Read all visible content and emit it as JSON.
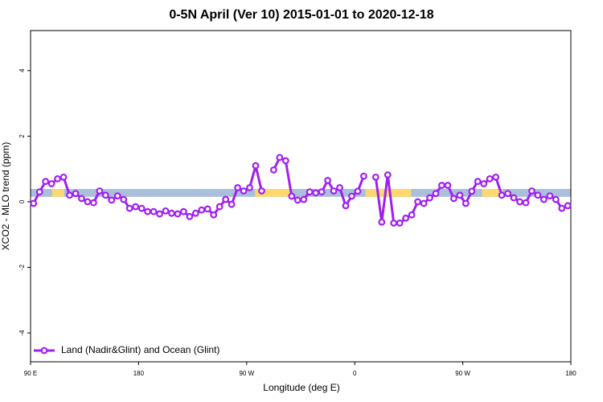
{
  "chart_data": {
    "type": "line",
    "title": "0-5N April (Ver 10)   2015-01-01 to 2020-12-18",
    "x_label": "Longitude (deg E)",
    "y_label": "XCO2 - MLO trend (ppm)",
    "xlim": [
      90,
      540
    ],
    "ylim": [
      -4.88,
      5.22
    ],
    "xticks": [
      {
        "value": 90,
        "label": "90 E"
      },
      {
        "value": 180,
        "label": "180"
      },
      {
        "value": 270,
        "label": "90 W"
      },
      {
        "value": 360,
        "label": "0"
      },
      {
        "value": 450,
        "label": "90 W"
      },
      {
        "value": 540,
        "label": "180"
      }
    ],
    "yticks": [
      4,
      2,
      0,
      -2,
      -4
    ],
    "legend": "bottomleft",
    "band": {
      "y": [
        0.15,
        0.39
      ],
      "color": "#a9bfdc",
      "highlight_color": "#fdd870",
      "highlight_x": [
        [
          108,
          118
        ],
        [
          277,
          307
        ],
        [
          369,
          407
        ],
        [
          466,
          483
        ]
      ]
    },
    "x": [
      92.5,
      97.5,
      102.5,
      107.5,
      112.5,
      117.5,
      122.5,
      127.5,
      132.5,
      137.5,
      142.5,
      147.5,
      152.5,
      157.5,
      162.5,
      167.5,
      172.5,
      177.5,
      182.5,
      187.5,
      192.5,
      197.5,
      202.5,
      207.5,
      212.5,
      217.5,
      222.5,
      227.5,
      232.5,
      237.5,
      242.5,
      247.5,
      252.5,
      257.5,
      262.5,
      267.5,
      272.5,
      277.5,
      282.5,
      287.5,
      292.5,
      297.5,
      302.5,
      307.5,
      312.5,
      317.5,
      322.5,
      327.5,
      332.5,
      337.5,
      342.5,
      347.5,
      352.5,
      357.5,
      362.5,
      367.5,
      372.5,
      377.5,
      382.5,
      387.5,
      392.5,
      397.5,
      402.5,
      407.5,
      412.5,
      417.5,
      422.5,
      427.5,
      432.5,
      437.5,
      442.5,
      447.5,
      452.5,
      457.5,
      462.5,
      467.5,
      472.5,
      477.5,
      482.5,
      487.5,
      492.5,
      497.5,
      502.5,
      507.5,
      512.5,
      517.5,
      522.5,
      527.5,
      532.5,
      537.5
    ],
    "series": [
      {
        "name": "Land (Nadir&Glint) and Ocean (Glint)",
        "color": "#a020f0",
        "values": [
          -0.05,
          0.3,
          0.62,
          0.55,
          0.7,
          0.75,
          0.2,
          0.25,
          0.1,
          0,
          -0.03,
          0.33,
          0.2,
          0.05,
          0.18,
          0.07,
          -0.2,
          -0.15,
          -0.2,
          -0.3,
          -0.3,
          -0.37,
          -0.28,
          -0.35,
          -0.37,
          -0.3,
          -0.45,
          -0.35,
          -0.25,
          -0.22,
          -0.4,
          -0.15,
          0.07,
          -0.08,
          0.43,
          0.33,
          0.43,
          1.1,
          0.33,
          null,
          0.97,
          1.35,
          1.25,
          0.17,
          0.05,
          0.07,
          0.3,
          0.27,
          0.3,
          0.65,
          0.33,
          0.43,
          -0.12,
          0.17,
          0.32,
          0.78,
          null,
          0.75,
          -0.62,
          0.82,
          -0.65,
          -0.65,
          -0.5,
          -0.4,
          0,
          -0.05,
          0.12,
          0.25,
          0.5,
          0.5,
          0.1,
          0.2,
          -0.05,
          0.32,
          0.62,
          0.55,
          0.7,
          0.75,
          0.2,
          0.25,
          0.12,
          0,
          -0.03,
          0.33,
          0.2,
          0.07,
          0.18,
          0.07,
          -0.2,
          -0.12
        ]
      }
    ]
  }
}
